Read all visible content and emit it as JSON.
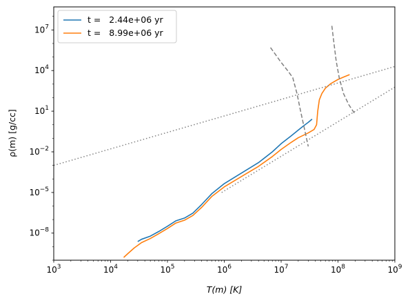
{
  "chart_data": {
    "type": "line",
    "xlabel": "T(m) [K]",
    "ylabel": "ρ(m) [g/cc]",
    "xscale": "log",
    "yscale": "log",
    "xlim": [
      1000,
      1000000000
    ],
    "ylim": [
      1e-10,
      500000000.0
    ],
    "xticks": [
      {
        "value": 1000,
        "base": "10",
        "exp": "3"
      },
      {
        "value": 10000,
        "base": "10",
        "exp": "4"
      },
      {
        "value": 100000,
        "base": "10",
        "exp": "5"
      },
      {
        "value": 1000000,
        "base": "10",
        "exp": "6"
      },
      {
        "value": 10000000,
        "base": "10",
        "exp": "7"
      },
      {
        "value": 100000000,
        "base": "10",
        "exp": "8"
      },
      {
        "value": 1000000000,
        "base": "10",
        "exp": "9"
      }
    ],
    "yticks": [
      {
        "value": 1e-08,
        "base": "10",
        "exp": "−8"
      },
      {
        "value": 1e-05,
        "base": "10",
        "exp": "−5"
      },
      {
        "value": 0.01,
        "base": "10",
        "exp": "−2"
      },
      {
        "value": 10,
        "base": "10",
        "exp": "1"
      },
      {
        "value": 10000,
        "base": "10",
        "exp": "4"
      },
      {
        "value": 10000000,
        "base": "10",
        "exp": "7"
      }
    ],
    "legend_position": "top-left",
    "series": [
      {
        "name": "t =   2.44e+06 yr",
        "color": "#1f77b4",
        "style": "solid",
        "points": [
          [
            30000.0,
            2.4e-09
          ],
          [
            35000.0,
            3.5e-09
          ],
          [
            50000.0,
            6e-09
          ],
          [
            70000.0,
            1.3e-08
          ],
          [
            100000.0,
            3.2e-08
          ],
          [
            140000.0,
            8e-08
          ],
          [
            200000.0,
            1.3e-07
          ],
          [
            280000.0,
            3e-07
          ],
          [
            400000.0,
            1.3e-06
          ],
          [
            600000.0,
            8e-06
          ],
          [
            1000000.0,
            4.5e-05
          ],
          [
            2000000.0,
            0.00027
          ],
          [
            4000000.0,
            0.0016
          ],
          [
            7000000.0,
            0.01
          ],
          [
            10000000.0,
            0.04
          ],
          [
            15000000.0,
            0.15
          ],
          [
            20000000.0,
            0.4
          ],
          [
            25000000.0,
            0.85
          ],
          [
            30000000.0,
            1.5
          ],
          [
            35000000.0,
            2.6
          ]
        ]
      },
      {
        "name": "t =   8.99e+06 yr",
        "color": "#ff7f0e",
        "style": "solid",
        "points": [
          [
            17000.0,
            1.6e-10
          ],
          [
            20000.0,
            3e-10
          ],
          [
            26000.0,
            8e-10
          ],
          [
            35000.0,
            2e-09
          ],
          [
            50000.0,
            4e-09
          ],
          [
            70000.0,
            9e-09
          ],
          [
            100000.0,
            2.2e-08
          ],
          [
            140000.0,
            5.5e-08
          ],
          [
            200000.0,
            9e-08
          ],
          [
            280000.0,
            2e-07
          ],
          [
            400000.0,
            8e-07
          ],
          [
            600000.0,
            5e-06
          ],
          [
            1000000.0,
            2.6e-05
          ],
          [
            2000000.0,
            0.00015
          ],
          [
            4000000.0,
            0.00085
          ],
          [
            7000000.0,
            0.0045
          ],
          [
            10000000.0,
            0.015
          ],
          [
            15000000.0,
            0.05
          ],
          [
            20000000.0,
            0.11
          ],
          [
            30000000.0,
            0.25
          ],
          [
            38000000.0,
            0.45
          ],
          [
            42000000.0,
            1.0
          ],
          [
            44000000.0,
            10
          ],
          [
            47000000.0,
            70
          ],
          [
            52000000.0,
            200
          ],
          [
            60000000.0,
            500
          ],
          [
            75000000.0,
            1100
          ],
          [
            100000000.0,
            2200
          ],
          [
            130000000.0,
            3500
          ],
          [
            160000000.0,
            5000
          ]
        ]
      },
      {
        "color": "#808080",
        "style": "dotted",
        "points": [
          [
            1000,
            0.001
          ],
          [
            1000000000,
            20000
          ]
        ]
      },
      {
        "color": "#808080",
        "style": "dotted",
        "points": [
          [
            900000,
            1e-05
          ],
          [
            1000000000,
            600
          ]
        ]
      },
      {
        "color": "#808080",
        "style": "dashed",
        "points": [
          [
            6500000.0,
            500000.0
          ],
          [
            10000000.0,
            40000.0
          ],
          [
            13000000.0,
            10000.0
          ],
          [
            16000000.0,
            3000.0
          ],
          [
            19000000.0,
            200
          ],
          [
            22000000.0,
            10
          ],
          [
            26000000.0,
            0.4
          ],
          [
            30000000.0,
            0.025
          ]
        ]
      },
      {
        "color": "#808080",
        "style": "dashed",
        "points": [
          [
            78000000.0,
            20000000.0
          ],
          [
            85000000.0,
            1000000.0
          ],
          [
            93000000.0,
            50000.0
          ],
          [
            105000000.0,
            3000
          ],
          [
            125000000.0,
            200
          ],
          [
            155000000.0,
            30
          ],
          [
            200000000.0,
            6
          ]
        ]
      }
    ]
  }
}
